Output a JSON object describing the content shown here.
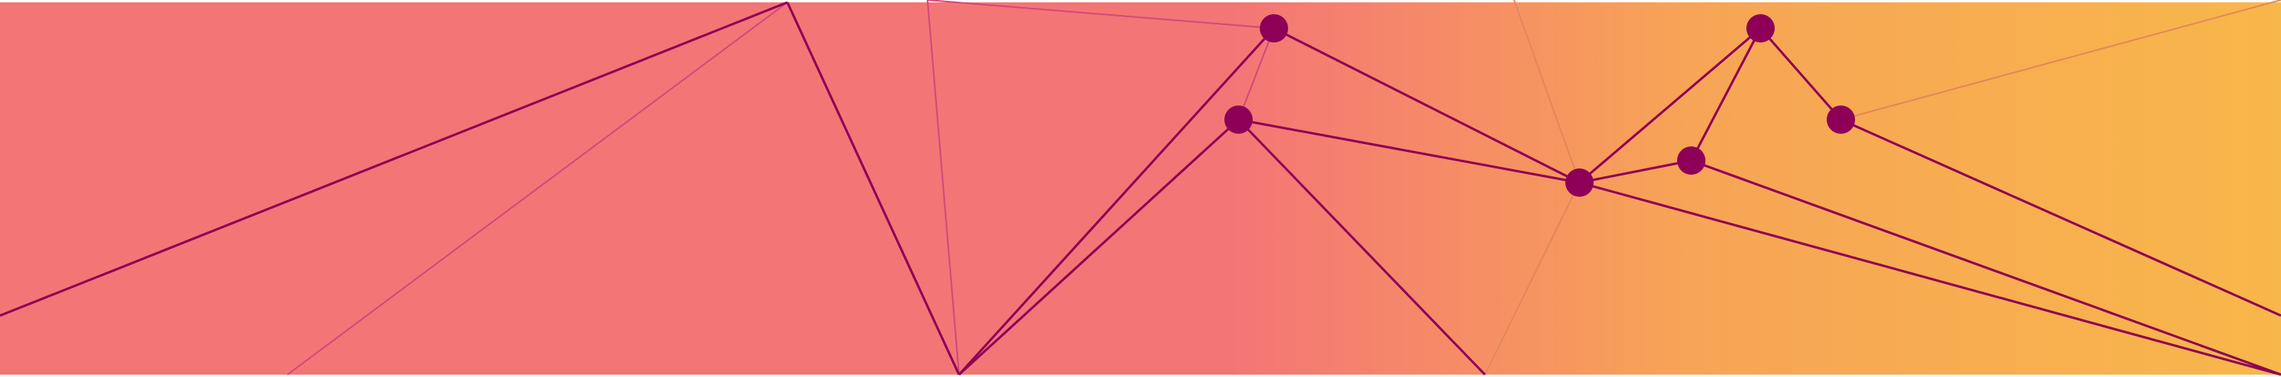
{
  "colors": {
    "gradient_start": "#F47576",
    "gradient_end": "#F8B74A",
    "node_fill": "#8E0057",
    "line_strong": "#8E0057",
    "line_faint_pink": "#D4487A",
    "line_faint_orange": "#E4875A",
    "page_background": "#FFFFFF"
  },
  "icons": {
    "nodes": "circle-node-icon"
  }
}
